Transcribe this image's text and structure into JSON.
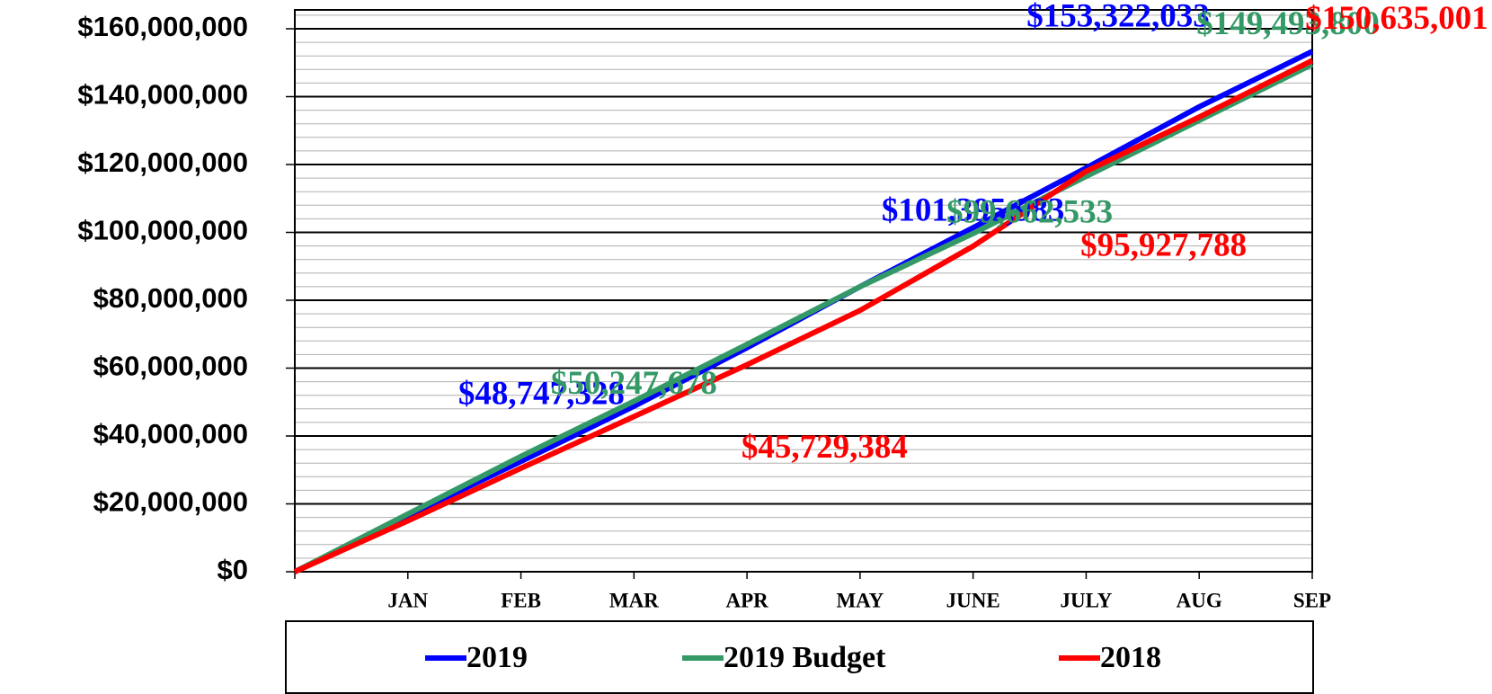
{
  "chart_data": {
    "type": "line",
    "categories": [
      null,
      "JAN",
      "FEB",
      "MAR",
      "APR",
      "MAY",
      "JUNE",
      "JULY",
      "AUG",
      "SEP"
    ],
    "series": [
      {
        "name": "2019",
        "color": "#0000ff",
        "values": [
          0,
          16500000,
          32500000,
          48747328,
          66000000,
          84000000,
          101395983,
          119000000,
          137000000,
          153322033
        ],
        "value_labels": [
          null,
          null,
          null,
          "$48,747,328",
          null,
          null,
          "$101,395,983",
          null,
          null,
          "$153,322,033"
        ]
      },
      {
        "name": "2019 Budget",
        "color": "#339966",
        "values": [
          0,
          17000000,
          34000000,
          50247678,
          67000000,
          84000000,
          99662533,
          116500000,
          133000000,
          149493800
        ],
        "value_labels": [
          null,
          null,
          null,
          "$50,247,678",
          null,
          null,
          "$99,662,533",
          null,
          null,
          "$149,493,800"
        ]
      },
      {
        "name": "2018",
        "color": "#ff0000",
        "values": [
          0,
          15000000,
          30500000,
          45729384,
          61000000,
          77000000,
          95927788,
          118000000,
          134000000,
          150635001
        ],
        "value_labels": [
          null,
          null,
          null,
          "$45,729,384",
          null,
          null,
          "$95,927,788",
          null,
          null,
          "$150,635,001"
        ]
      }
    ],
    "ylim": [
      0,
      160000000
    ],
    "yticks": [
      {
        "value": 0,
        "label": "$0"
      },
      {
        "value": 20000000,
        "label": "$20,000,000"
      },
      {
        "value": 40000000,
        "label": "$40,000,000"
      },
      {
        "value": 60000000,
        "label": "$60,000,000"
      },
      {
        "value": 80000000,
        "label": "$80,000,000"
      },
      {
        "value": 100000000,
        "label": "$100,000,000"
      },
      {
        "value": 120000000,
        "label": "$120,000,000"
      },
      {
        "value": 140000000,
        "label": "$140,000,000"
      },
      {
        "value": 160000000,
        "label": "$160,000,000"
      }
    ],
    "grid": true,
    "legend": "bottom"
  }
}
